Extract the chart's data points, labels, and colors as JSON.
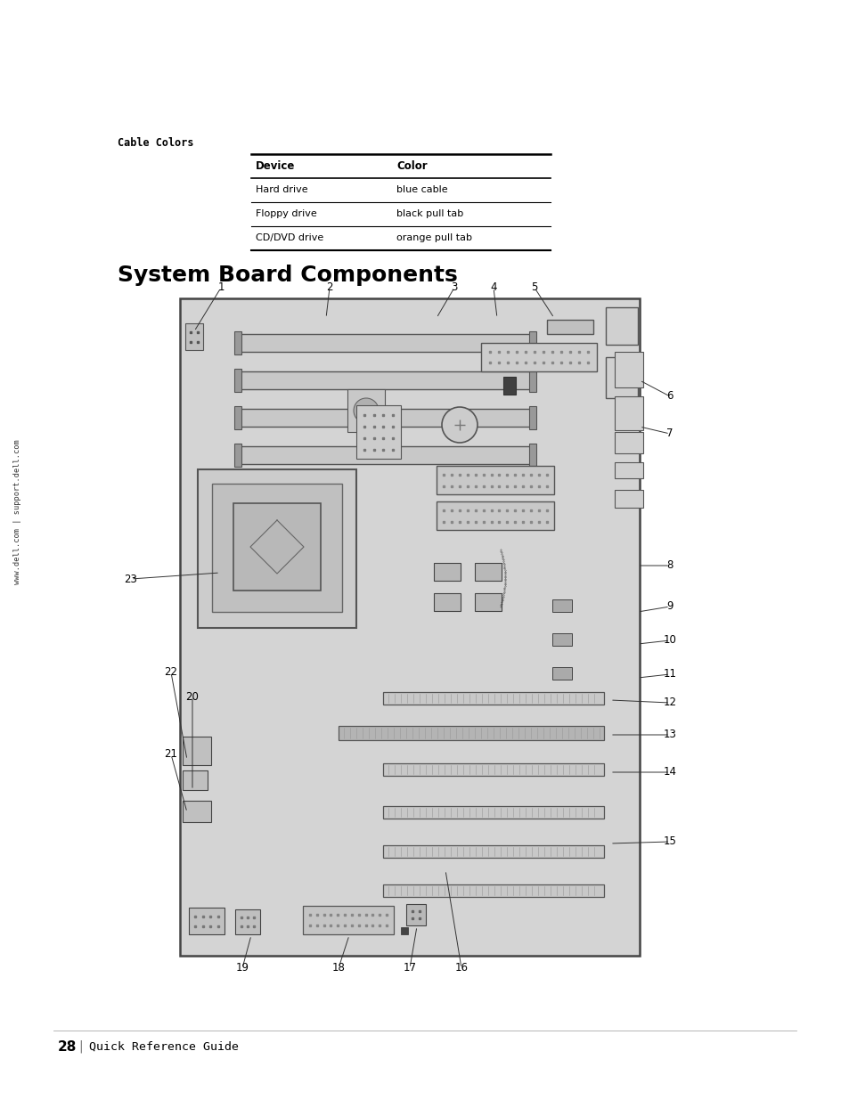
{
  "bg_color": "#ffffff",
  "page_title": "System Board Components",
  "section_label": "Cable Colors",
  "table_headers": [
    "Device",
    "Color"
  ],
  "table_rows": [
    [
      "Hard drive",
      "blue cable"
    ],
    [
      "Floppy drive",
      "black pull tab"
    ],
    [
      "CD/DVD drive",
      "orange pull tab"
    ]
  ],
  "sidebar_text": "www.dell.com | support.dell.com",
  "footer_page": "28",
  "footer_text": "Quick Reference Guide",
  "board_color": "#d4d4d4",
  "board_border": "#444444",
  "callouts": [
    [
      "1",
      248,
      912,
      218,
      863
    ],
    [
      "2",
      370,
      912,
      366,
      878
    ],
    [
      "3",
      510,
      912,
      490,
      878
    ],
    [
      "4",
      554,
      912,
      558,
      878
    ],
    [
      "5",
      600,
      912,
      622,
      878
    ],
    [
      "6",
      752,
      790,
      718,
      808
    ],
    [
      "7",
      752,
      748,
      718,
      756
    ],
    [
      "8",
      752,
      600,
      716,
      600
    ],
    [
      "9",
      752,
      554,
      716,
      548
    ],
    [
      "10",
      752,
      516,
      716,
      512
    ],
    [
      "11",
      752,
      478,
      716,
      474
    ],
    [
      "12",
      752,
      446,
      685,
      449
    ],
    [
      "13",
      752,
      410,
      685,
      410
    ],
    [
      "14",
      752,
      368,
      685,
      368
    ],
    [
      "15",
      752,
      290,
      685,
      288
    ],
    [
      "16",
      518,
      148,
      500,
      258
    ],
    [
      "17",
      460,
      148,
      468,
      195
    ],
    [
      "18",
      380,
      148,
      392,
      185
    ],
    [
      "19",
      272,
      148,
      282,
      185
    ],
    [
      "20",
      216,
      453,
      216,
      348
    ],
    [
      "21",
      192,
      388,
      210,
      323
    ],
    [
      "22",
      192,
      480,
      210,
      382
    ],
    [
      "23",
      147,
      585,
      247,
      592
    ]
  ]
}
